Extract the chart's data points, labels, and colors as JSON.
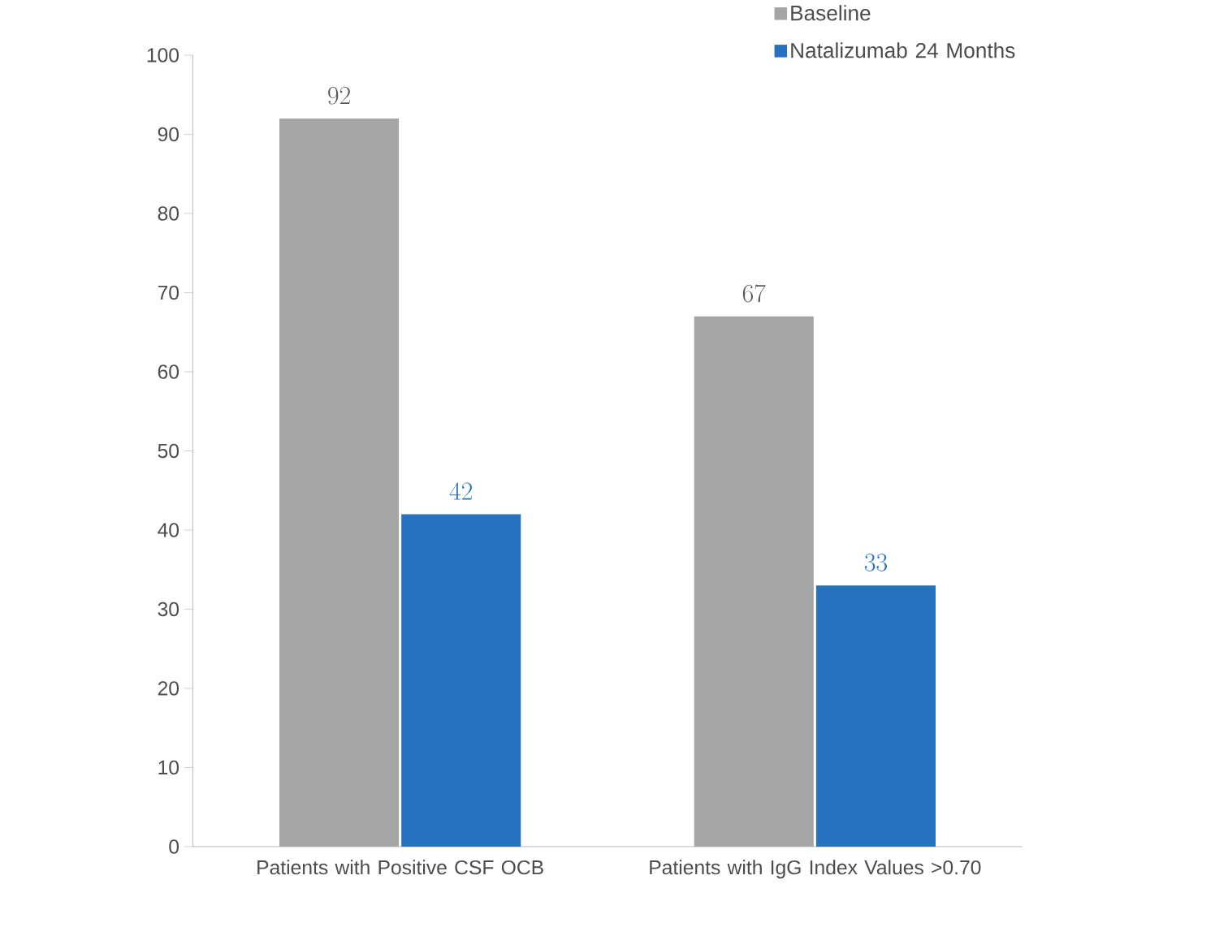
{
  "chart_data": {
    "type": "bar",
    "categories": [
      "Patients with Positive CSF OCB",
      "Patients with IgG Index Values >0.70"
    ],
    "series": [
      {
        "name": "Baseline",
        "color": "#a5a5a5",
        "values": [
          92,
          67
        ]
      },
      {
        "name": "Natalizumab 24 Months",
        "color": "#2672c0",
        "values": [
          42,
          33
        ]
      }
    ],
    "ylim": [
      0,
      100
    ],
    "yticks": [
      0,
      10,
      20,
      30,
      40,
      50,
      60,
      70,
      80,
      90,
      100
    ],
    "data_labels": true,
    "legend": "top right",
    "grid": false
  }
}
